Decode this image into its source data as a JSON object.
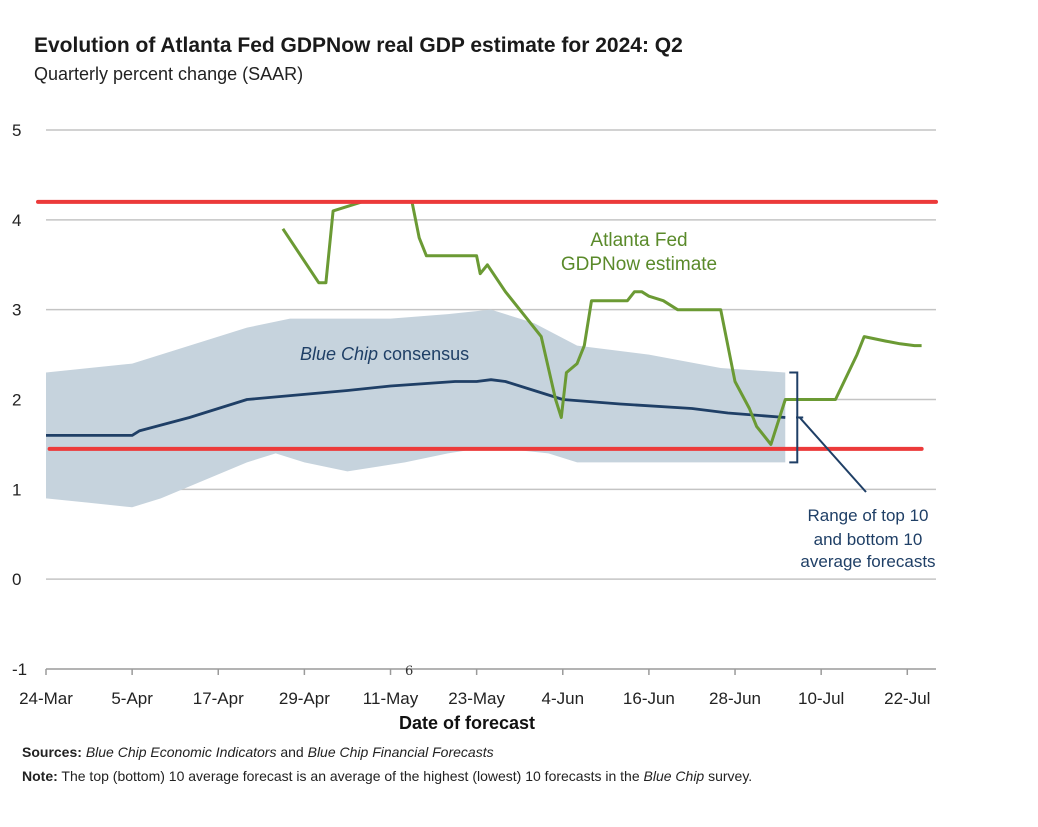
{
  "chart_data": {
    "type": "line",
    "title": "Evolution of Atlanta Fed GDPNow real GDP estimate for 2024: Q2",
    "subtitle": "Quarterly percent change (SAAR)",
    "xlabel": "Date of forecast",
    "ylabel": "",
    "ylim": [
      -1,
      5
    ],
    "xlim": [
      0,
      124
    ],
    "grid": true,
    "y_ticks": [
      5,
      4,
      3,
      2,
      1,
      0,
      -1
    ],
    "x_ticks": [
      {
        "label": "24-Mar",
        "day": 0
      },
      {
        "label": "5-Apr",
        "day": 12
      },
      {
        "label": "17-Apr",
        "day": 24
      },
      {
        "label": "29-Apr",
        "day": 36
      },
      {
        "label": "11-May",
        "day": 48
      },
      {
        "label": "23-May",
        "day": 60
      },
      {
        "label": "4-Jun",
        "day": 72
      },
      {
        "label": "16-Jun",
        "day": 84
      },
      {
        "label": "28-Jun",
        "day": 96
      },
      {
        "label": "10-Jul",
        "day": 108
      },
      {
        "label": "22-Jul",
        "day": 120
      }
    ],
    "series": [
      {
        "name": "GDPNow",
        "color": "#6b9a34",
        "points": [
          [
            33,
            3.9
          ],
          [
            38,
            3.3
          ],
          [
            39,
            3.3
          ],
          [
            40,
            4.1
          ],
          [
            44,
            4.2
          ],
          [
            46,
            4.2
          ],
          [
            51,
            4.2
          ],
          [
            52,
            3.8
          ],
          [
            53,
            3.6
          ],
          [
            60,
            3.6
          ],
          [
            60.5,
            3.4
          ],
          [
            61.5,
            3.5
          ],
          [
            64,
            3.2
          ],
          [
            67,
            2.9
          ],
          [
            69,
            2.7
          ],
          [
            71,
            2.0
          ],
          [
            71.8,
            1.8
          ],
          [
            72.5,
            2.3
          ],
          [
            74,
            2.4
          ],
          [
            75,
            2.6
          ],
          [
            76,
            3.1
          ],
          [
            81,
            3.1
          ],
          [
            82,
            3.2
          ],
          [
            83,
            3.2
          ],
          [
            84,
            3.15
          ],
          [
            86,
            3.1
          ],
          [
            88,
            3.0
          ],
          [
            94,
            3.0
          ],
          [
            96,
            2.2
          ],
          [
            98,
            1.9
          ],
          [
            99,
            1.7
          ],
          [
            101,
            1.5
          ],
          [
            103,
            2.0
          ],
          [
            110,
            2.0
          ],
          [
            113,
            2.5
          ],
          [
            114,
            2.7
          ],
          [
            117,
            2.65
          ],
          [
            119,
            2.62
          ],
          [
            121,
            2.6
          ],
          [
            122,
            2.6
          ]
        ]
      },
      {
        "name": "Blue Chip consensus",
        "color": "#1f3f66",
        "points": [
          [
            0,
            1.6
          ],
          [
            12,
            1.6
          ],
          [
            13,
            1.65
          ],
          [
            20,
            1.8
          ],
          [
            28,
            2.0
          ],
          [
            35,
            2.05
          ],
          [
            42,
            2.1
          ],
          [
            48,
            2.15
          ],
          [
            57,
            2.2
          ],
          [
            60,
            2.2
          ],
          [
            62,
            2.22
          ],
          [
            64,
            2.2
          ],
          [
            68,
            2.1
          ],
          [
            72,
            2.0
          ],
          [
            80,
            1.95
          ],
          [
            90,
            1.9
          ],
          [
            95,
            1.85
          ],
          [
            103,
            1.8
          ]
        ]
      },
      {
        "name": "Range upper",
        "points": [
          [
            0,
            2.3
          ],
          [
            12,
            2.4
          ],
          [
            20,
            2.6
          ],
          [
            28,
            2.8
          ],
          [
            34,
            2.9
          ],
          [
            48,
            2.9
          ],
          [
            56,
            2.95
          ],
          [
            62,
            3.0
          ],
          [
            68,
            2.85
          ],
          [
            74,
            2.6
          ],
          [
            84,
            2.5
          ],
          [
            94,
            2.35
          ],
          [
            103,
            2.3
          ]
        ]
      },
      {
        "name": "Range lower",
        "points": [
          [
            0,
            0.9
          ],
          [
            6,
            0.85
          ],
          [
            12,
            0.8
          ],
          [
            16,
            0.9
          ],
          [
            22,
            1.1
          ],
          [
            28,
            1.3
          ],
          [
            32,
            1.4
          ],
          [
            36,
            1.3
          ],
          [
            42,
            1.2
          ],
          [
            50,
            1.3
          ],
          [
            56,
            1.4
          ],
          [
            60,
            1.45
          ],
          [
            64,
            1.45
          ],
          [
            70,
            1.4
          ],
          [
            74,
            1.3
          ],
          [
            84,
            1.3
          ],
          [
            103,
            1.3
          ]
        ]
      }
    ],
    "range_color": "#c6d3dd",
    "reference_lines": [
      {
        "y": 4.2,
        "color": "#ec3a3a"
      },
      {
        "y": 1.45,
        "color": "#ec3a3a",
        "x_start": 0.5,
        "x_end": 122
      }
    ],
    "annotations": {
      "green_line1": "Atlanta Fed",
      "green_line2": "GDPNow estimate",
      "blue_italic": "Blue Chip",
      "blue_rest": " consensus",
      "range_line1": "Range of top 10",
      "range_line2": "and bottom 10",
      "range_line3": "average forecasts",
      "stray_mark": "6"
    }
  },
  "footer": {
    "sources_label": "Sources:",
    "sources_italic1": "Blue Chip Economic Indicators",
    "sources_and": " and ",
    "sources_italic2": "Blue Chip Financial Forecasts",
    "note_label": "Note:",
    "note_text": " The top (bottom) 10 average forecast is an average of the highest (lowest) 10 forecasts in the ",
    "note_italic": "Blue Chip",
    "note_end": " survey."
  }
}
